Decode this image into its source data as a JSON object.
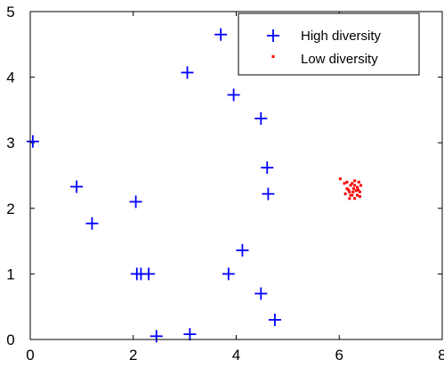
{
  "chart_data": {
    "type": "scatter",
    "title": "",
    "xlabel": "",
    "ylabel": "",
    "xlim": [
      0,
      8
    ],
    "ylim": [
      0,
      5
    ],
    "xticks": [
      "0",
      "2",
      "4",
      "6",
      "8"
    ],
    "yticks": [
      "0",
      "1",
      "2",
      "3",
      "4",
      "5"
    ],
    "grid": false,
    "legend_position": "top-right",
    "series": [
      {
        "name": "High diversity",
        "marker": "plus",
        "color": "#0000ff",
        "points": [
          [
            3.7,
            4.65
          ],
          [
            3.05,
            4.07
          ],
          [
            3.95,
            3.73
          ],
          [
            4.48,
            3.37
          ],
          [
            0.05,
            3.02
          ],
          [
            4.6,
            2.62
          ],
          [
            0.9,
            2.33
          ],
          [
            4.62,
            2.22
          ],
          [
            2.05,
            2.1
          ],
          [
            1.2,
            1.77
          ],
          [
            4.12,
            1.36
          ],
          [
            2.07,
            1.0
          ],
          [
            2.15,
            1.0
          ],
          [
            2.3,
            1.0
          ],
          [
            3.85,
            1.0
          ],
          [
            4.48,
            0.7
          ],
          [
            4.75,
            0.3
          ],
          [
            2.45,
            0.05
          ],
          [
            3.1,
            0.08
          ]
        ]
      },
      {
        "name": "Low diversity",
        "marker": "dot",
        "color": "#ff0000",
        "points": [
          [
            6.02,
            2.45
          ],
          [
            6.1,
            2.38
          ],
          [
            6.15,
            2.3
          ],
          [
            6.2,
            2.25
          ],
          [
            6.25,
            2.2
          ],
          [
            6.3,
            2.15
          ],
          [
            6.35,
            2.2
          ],
          [
            6.4,
            2.25
          ],
          [
            6.42,
            2.35
          ],
          [
            6.38,
            2.4
          ],
          [
            6.3,
            2.42
          ],
          [
            6.22,
            2.35
          ],
          [
            6.18,
            2.28
          ],
          [
            6.28,
            2.3
          ],
          [
            6.35,
            2.32
          ],
          [
            6.25,
            2.38
          ],
          [
            6.12,
            2.22
          ],
          [
            6.2,
            2.15
          ],
          [
            6.33,
            2.27
          ],
          [
            6.4,
            2.18
          ],
          [
            6.27,
            2.25
          ],
          [
            6.15,
            2.4
          ],
          [
            6.3,
            2.35
          ],
          [
            6.37,
            2.28
          ],
          [
            6.22,
            2.2
          ]
        ]
      }
    ]
  }
}
